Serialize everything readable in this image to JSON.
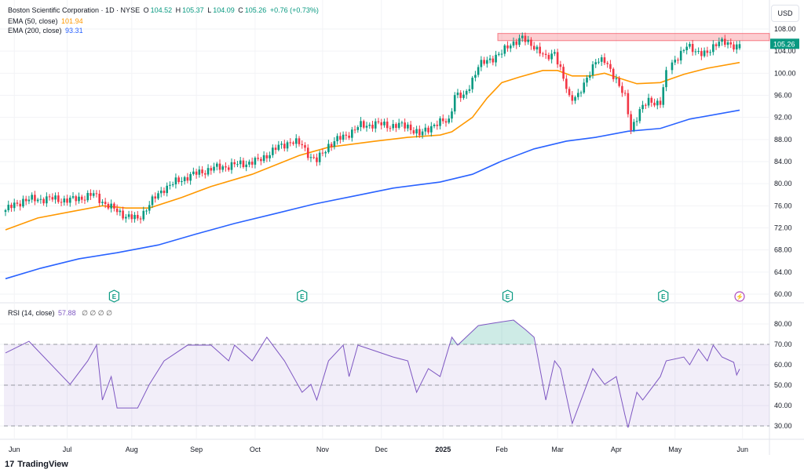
{
  "header": {
    "symbol": "Boston Scientific Corporation · 1D · NYSE",
    "o_label": "O",
    "o": "104.52",
    "h_label": "H",
    "h": "105.37",
    "l_label": "L",
    "l": "104.09",
    "c_label": "C",
    "c": "105.26",
    "change": "+0.76 (+0.73%)",
    "ema50_label": "EMA (50, close)",
    "ema50_value": "101.94",
    "ema200_label": "EMA (200, close)",
    "ema200_value": "93.31",
    "rsi_label": "RSI (14, close)",
    "rsi_value": "57.88",
    "rsi_extra": "∅ ∅ ∅ ∅"
  },
  "currency": "USD",
  "footer": {
    "logo": "TradingView"
  },
  "colors": {
    "up": "#089981",
    "down": "#f23645",
    "ema50": "#ff9800",
    "ema200": "#2962ff",
    "rsi": "#7e57c2",
    "zone": "#f23645"
  },
  "chart_data": [
    {
      "type": "candlestick",
      "title": "Boston Scientific Corporation · 1D · NYSE",
      "ylabel": "USD",
      "ylim": [
        60,
        108
      ],
      "y_ticks": [
        "108.00",
        "104.00",
        "100.00",
        "96.00",
        "92.00",
        "88.00",
        "84.00",
        "80.00",
        "76.00",
        "72.00",
        "68.00",
        "64.00",
        "60.00"
      ],
      "x_ticks": [
        "Jun",
        "Jul",
        "Aug",
        "Sep",
        "Oct",
        "Nov",
        "Dec",
        "2025",
        "Feb",
        "Mar",
        "Apr",
        "May",
        "Jun"
      ],
      "x_tick_days": [
        3,
        21,
        43,
        65,
        85,
        108,
        128,
        149,
        169,
        188,
        208,
        228,
        251
      ],
      "last_price_label": "105.26",
      "resistance_zone": [
        105.9,
        107.2
      ],
      "earnings_markers_days": [
        37,
        101,
        171,
        224
      ],
      "event_marker_day": 250,
      "close_points": [
        [
          0,
          75.2
        ],
        [
          6,
          77
        ],
        [
          14,
          77.3
        ],
        [
          22,
          77
        ],
        [
          30,
          78
        ],
        [
          36,
          75.6
        ],
        [
          41,
          74.2
        ],
        [
          45,
          73.5
        ],
        [
          49,
          76.3
        ],
        [
          54,
          79.2
        ],
        [
          62,
          81.3
        ],
        [
          70,
          82.7
        ],
        [
          78,
          83.4
        ],
        [
          86,
          84.1
        ],
        [
          92,
          86.3
        ],
        [
          97,
          87.7
        ],
        [
          101,
          87
        ],
        [
          104,
          84.8
        ],
        [
          106,
          84.1
        ],
        [
          110,
          87
        ],
        [
          116,
          88.8
        ],
        [
          121,
          90.5
        ],
        [
          126,
          90.8
        ],
        [
          132,
          90.5
        ],
        [
          137,
          90.5
        ],
        [
          141,
          88.8
        ],
        [
          145,
          90.5
        ],
        [
          151,
          91.5
        ],
        [
          153,
          96.2
        ],
        [
          156,
          95.5
        ],
        [
          159,
          99
        ],
        [
          161,
          101.2
        ],
        [
          165,
          102.6
        ],
        [
          169,
          103.6
        ],
        [
          172,
          105.4
        ],
        [
          176,
          106.2
        ],
        [
          180,
          105
        ],
        [
          184,
          102.6
        ],
        [
          187,
          104
        ],
        [
          189,
          100.5
        ],
        [
          192,
          95.5
        ],
        [
          195,
          96.2
        ],
        [
          197,
          97.6
        ],
        [
          201,
          102.6
        ],
        [
          204,
          102
        ],
        [
          208,
          99
        ],
        [
          211,
          95.5
        ],
        [
          213,
          89.8
        ],
        [
          216,
          93.4
        ],
        [
          219,
          94.8
        ],
        [
          223,
          94.8
        ],
        [
          225,
          99.8
        ],
        [
          228,
          102.6
        ],
        [
          232,
          104.7
        ],
        [
          236,
          104
        ],
        [
          239,
          103.3
        ],
        [
          243,
          106.2
        ],
        [
          247,
          104.7
        ],
        [
          250,
          105.26
        ]
      ],
      "series": [
        {
          "name": "EMA (50, close)",
          "points": [
            [
              0,
              71.65
            ],
            [
              11,
              73.8
            ],
            [
              22,
              74.9
            ],
            [
              33,
              76.0
            ],
            [
              41,
              75.6
            ],
            [
              49,
              75.6
            ],
            [
              60,
              77.5
            ],
            [
              70,
              79.5
            ],
            [
              84,
              81.7
            ],
            [
              92,
              83.4
            ],
            [
              100,
              85.1
            ],
            [
              110,
              86.6
            ],
            [
              126,
              87.7
            ],
            [
              137,
              88.4
            ],
            [
              148,
              88.8
            ],
            [
              152,
              89.4
            ],
            [
              159,
              92.0
            ],
            [
              164,
              95.5
            ],
            [
              169,
              98.3
            ],
            [
              175,
              99.3
            ],
            [
              183,
              100.5
            ],
            [
              188,
              100.5
            ],
            [
              193,
              99.5
            ],
            [
              199,
              99.5
            ],
            [
              204,
              100.0
            ],
            [
              209,
              99.1
            ],
            [
              215,
              98.1
            ],
            [
              223,
              98.3
            ],
            [
              231,
              99.8
            ],
            [
              239,
              100.9
            ],
            [
              250,
              101.94
            ]
          ]
        },
        {
          "name": "EMA (200, close)",
          "points": [
            [
              0,
              62.8
            ],
            [
              12,
              64.7
            ],
            [
              25,
              66.4
            ],
            [
              38,
              67.5
            ],
            [
              52,
              68.9
            ],
            [
              65,
              70.9
            ],
            [
              78,
              72.8
            ],
            [
              92,
              74.6
            ],
            [
              105,
              76.3
            ],
            [
              119,
              77.8
            ],
            [
              132,
              79.2
            ],
            [
              148,
              80.3
            ],
            [
              159,
              81.7
            ],
            [
              169,
              84.1
            ],
            [
              180,
              86.3
            ],
            [
              191,
              87.7
            ],
            [
              201,
              88.4
            ],
            [
              212,
              89.5
            ],
            [
              223,
              90.0
            ],
            [
              233,
              91.7
            ],
            [
              250,
              93.31
            ]
          ]
        }
      ]
    },
    {
      "type": "line",
      "title": "RSI (14, close)",
      "ylim": [
        25,
        87
      ],
      "y_ticks": [
        "80.00",
        "70.00",
        "60.00",
        "50.00",
        "40.00",
        "30.00"
      ],
      "bands": {
        "upper": 70,
        "middle": 50,
        "lower": 30
      },
      "series": [
        {
          "name": "RSI",
          "points": [
            [
              0,
              65.8
            ],
            [
              8,
              71.5
            ],
            [
              22,
              50.4
            ],
            [
              28,
              61.9
            ],
            [
              31,
              69.6
            ],
            [
              33,
              42.7
            ],
            [
              36,
              54.2
            ],
            [
              38,
              38.8
            ],
            [
              45,
              38.8
            ],
            [
              49,
              50.4
            ],
            [
              54,
              61.9
            ],
            [
              62,
              69.6
            ],
            [
              70,
              69.6
            ],
            [
              76,
              61.9
            ],
            [
              78,
              69.6
            ],
            [
              84,
              61.9
            ],
            [
              89,
              73.5
            ],
            [
              95,
              61.9
            ],
            [
              101,
              46.5
            ],
            [
              104,
              50.4
            ],
            [
              106,
              42.7
            ],
            [
              110,
              61.9
            ],
            [
              115,
              69.6
            ],
            [
              117,
              54.2
            ],
            [
              120,
              69.6
            ],
            [
              124,
              67.7
            ],
            [
              132,
              63.8
            ],
            [
              137,
              61.9
            ],
            [
              140,
              46.5
            ],
            [
              144,
              58.1
            ],
            [
              148,
              54.2
            ],
            [
              152,
              73.5
            ],
            [
              154,
              69.6
            ],
            [
              161,
              79.2
            ],
            [
              166,
              80.4
            ],
            [
              173,
              81.9
            ],
            [
              177,
              77.3
            ],
            [
              180,
              73.5
            ],
            [
              184,
              42.7
            ],
            [
              187,
              61.9
            ],
            [
              189,
              58.1
            ],
            [
              193,
              31.2
            ],
            [
              196,
              42.7
            ],
            [
              200,
              58.1
            ],
            [
              204,
              50.4
            ],
            [
              208,
              54.2
            ],
            [
              211,
              35.0
            ],
            [
              212,
              29.2
            ],
            [
              215,
              46.5
            ],
            [
              217,
              42.7
            ],
            [
              223,
              54.2
            ],
            [
              225,
              61.9
            ],
            [
              231,
              63.8
            ],
            [
              233,
              60.0
            ],
            [
              236,
              67.7
            ],
            [
              239,
              61.9
            ],
            [
              241,
              69.6
            ],
            [
              244,
              63.8
            ],
            [
              248,
              61.2
            ],
            [
              249,
              55
            ],
            [
              250,
              57.88
            ]
          ]
        }
      ]
    }
  ]
}
